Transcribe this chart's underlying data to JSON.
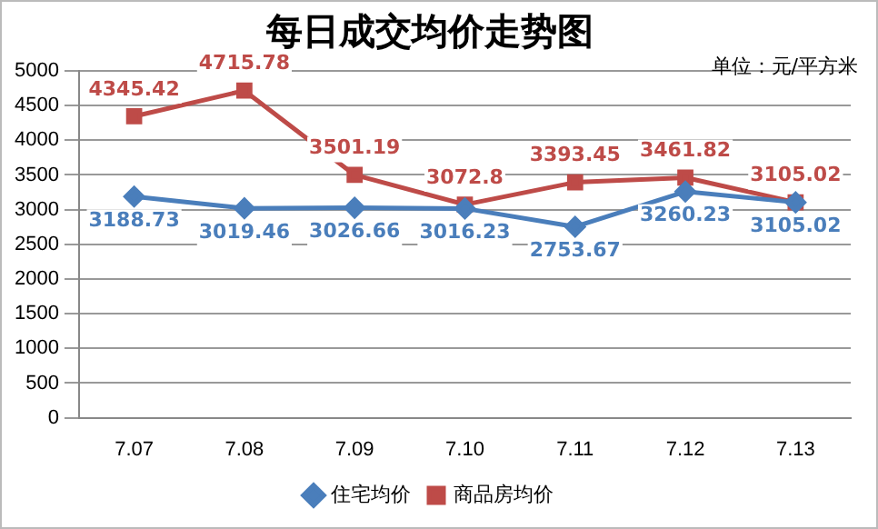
{
  "chart_data": {
    "type": "line",
    "title": "每日成交均价走势图",
    "annotations": [
      "单位：元/平方米"
    ],
    "categories": [
      "7.07",
      "7.08",
      "7.09",
      "7.10",
      "7.11",
      "7.12",
      "7.13"
    ],
    "series": [
      {
        "name": "住宅均价",
        "color": "#4a7ebb",
        "marker": "diamond",
        "values": [
          3188.73,
          3019.46,
          3026.66,
          3016.23,
          2753.67,
          3260.23,
          3105.02
        ]
      },
      {
        "name": "商品房均价",
        "color": "#be4b48",
        "marker": "square",
        "values": [
          4345.42,
          4715.78,
          3501.19,
          3072.8,
          3393.45,
          3461.82,
          3105.02
        ]
      }
    ],
    "ylim": [
      0,
      5000
    ],
    "yticks": [
      0,
      500,
      1000,
      1500,
      2000,
      2500,
      3000,
      3500,
      4000,
      4500,
      5000
    ],
    "grid": "y",
    "legend": "bottom",
    "data_labels": true,
    "line_style": "solid"
  }
}
